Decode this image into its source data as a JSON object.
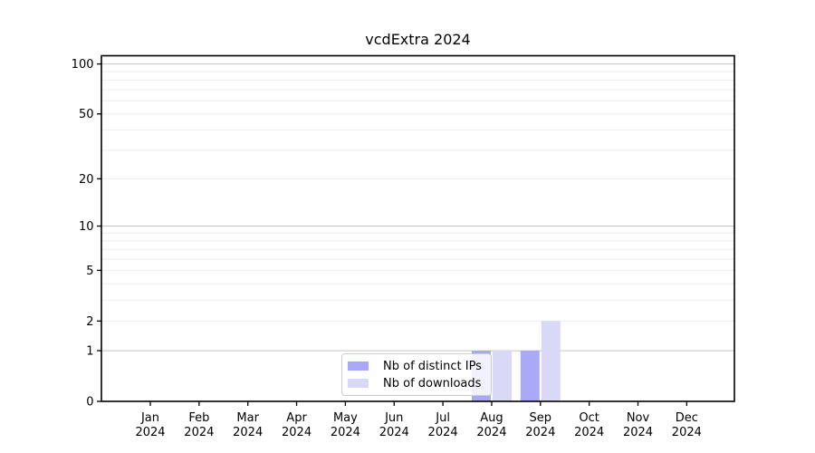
{
  "page": {
    "background": "#ffffff"
  },
  "chart_data": {
    "type": "bar",
    "title": "vcdExtra 2024",
    "categories": [
      "Jan 2024",
      "Feb 2024",
      "Mar 2024",
      "Apr 2024",
      "May 2024",
      "Jun 2024",
      "Jul 2024",
      "Aug 2024",
      "Sep 2024",
      "Oct 2024",
      "Nov 2024",
      "Dec 2024"
    ],
    "series": [
      {
        "name": "Nb of distinct IPs",
        "color": "#a9a9f7",
        "values": [
          0,
          0,
          0,
          0,
          0,
          0,
          0,
          1,
          1,
          0,
          0,
          0
        ]
      },
      {
        "name": "Nb of downloads",
        "color": "#d9d9f7",
        "values": [
          0,
          0,
          0,
          0,
          0,
          0,
          0,
          1,
          2,
          0,
          0,
          0
        ]
      }
    ],
    "xlabel": "",
    "ylabel": "",
    "yscale": "log1p",
    "ylim": [
      0,
      100
    ],
    "yticks": [
      0,
      1,
      2,
      5,
      10,
      20,
      50,
      100
    ],
    "major_gridlines": [
      1,
      10,
      100
    ],
    "minor_gridlines": [
      2,
      3,
      4,
      5,
      6,
      7,
      8,
      9,
      20,
      30,
      40,
      50,
      60,
      70,
      80,
      90
    ],
    "grid": "horizontal",
    "legend_position": "inside-bottom-center",
    "colors": {
      "axis": "#000000",
      "tick_text": "#000000",
      "major_grid": "#c3c3c3",
      "minor_grid": "#ebebeb",
      "legend_border": "#cccccc"
    }
  }
}
